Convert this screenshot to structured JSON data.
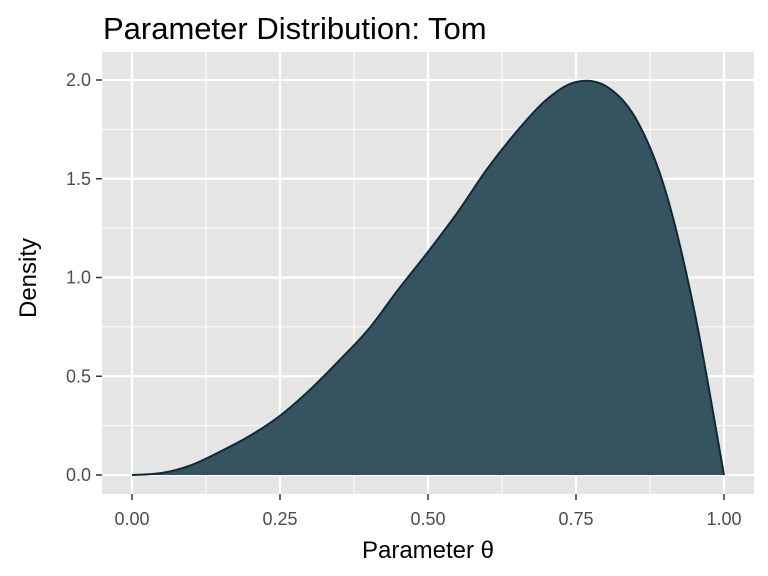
{
  "chart_data": {
    "type": "area",
    "title": "Parameter Distribution: Tom",
    "xlabel": "Parameter θ",
    "ylabel": "Density",
    "xlim": [
      0,
      1
    ],
    "ylim": [
      0,
      2.0
    ],
    "x_ticks": [
      0.0,
      0.25,
      0.5,
      0.75,
      1.0
    ],
    "x_tick_labels": [
      "0.00",
      "0.25",
      "0.50",
      "0.75",
      "1.00"
    ],
    "y_ticks": [
      0.0,
      0.5,
      1.0,
      1.5,
      2.0
    ],
    "y_tick_labels": [
      "0.0",
      "0.5",
      "1.0",
      "1.5",
      "2.0"
    ],
    "grid": true,
    "legend": "none",
    "series": [
      {
        "x": [
          0.0,
          0.05,
          0.1,
          0.15,
          0.2,
          0.25,
          0.3,
          0.35,
          0.4,
          0.45,
          0.5,
          0.55,
          0.6,
          0.65,
          0.7,
          0.75,
          0.8,
          0.85,
          0.9,
          0.95,
          1.0
        ],
        "y": [
          0.0,
          0.01,
          0.05,
          0.12,
          0.2,
          0.3,
          0.43,
          0.58,
          0.74,
          0.94,
          1.13,
          1.33,
          1.55,
          1.74,
          1.9,
          1.99,
          1.97,
          1.81,
          1.45,
          0.83,
          0.0
        ]
      }
    ],
    "fill_color": "#2f4d5b",
    "line_color": "#0f2a36",
    "panel_color": "#e5e5e5",
    "grid_color": "#ffffff"
  }
}
